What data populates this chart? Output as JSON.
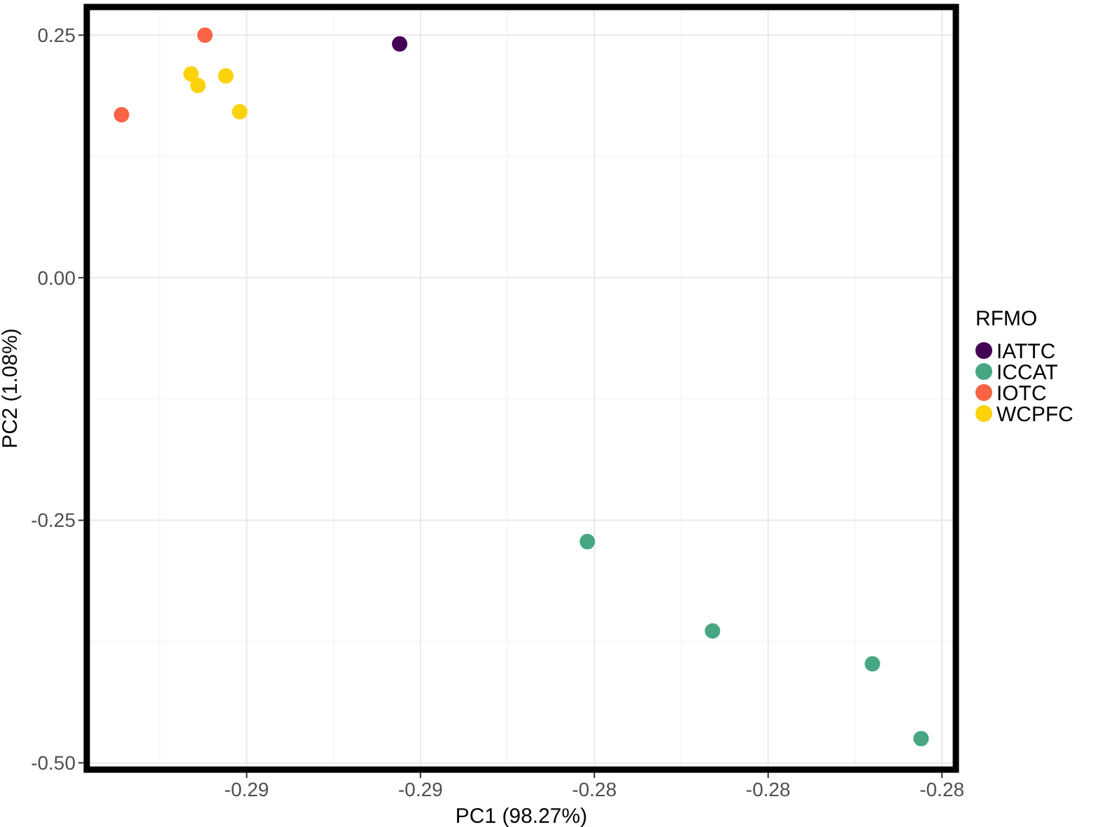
{
  "chart_data": {
    "type": "scatter",
    "xlabel": "PC1 (98.27%)",
    "ylabel": "PC2 (1.08%)",
    "legend_title": "RFMO",
    "legend": "right",
    "grid": true,
    "marker": "circle",
    "xlim": [
      -0.2923,
      -0.2798
    ],
    "ylim": [
      -0.507,
      0.279
    ],
    "xticks": [
      {
        "value": -0.29,
        "label": "-0.29"
      },
      {
        "value": -0.2875,
        "label": "-0.29"
      },
      {
        "value": -0.285,
        "label": "-0.28"
      },
      {
        "value": -0.2825,
        "label": "-0.28"
      },
      {
        "value": -0.28,
        "label": "-0.28"
      }
    ],
    "yticks": [
      {
        "value": 0.25,
        "label": "0.25"
      },
      {
        "value": 0,
        "label": "0.00"
      },
      {
        "value": -0.25,
        "label": "-0.25"
      },
      {
        "value": -0.5,
        "label": "-0.50"
      }
    ],
    "series": [
      {
        "name": "IATTC",
        "color": "#440154",
        "x": [
          -0.2878
        ],
        "values": [
          0.241
        ]
      },
      {
        "name": "ICCAT",
        "color": "#47a783",
        "x": [
          -0.2851,
          -0.2833,
          -0.281,
          -0.2803
        ],
        "values": [
          -0.272,
          -0.364,
          -0.398,
          -0.475
        ]
      },
      {
        "name": "IOTC",
        "color": "#fa6346",
        "x": [
          -0.2906,
          -0.2918
        ],
        "values": [
          0.25,
          0.168
        ]
      },
      {
        "name": "WCPFC",
        "color": "#fcd20a",
        "x": [
          -0.2908,
          -0.2907,
          -0.2903,
          -0.2901
        ],
        "values": [
          0.21,
          0.198,
          0.208,
          0.171
        ]
      }
    ]
  }
}
